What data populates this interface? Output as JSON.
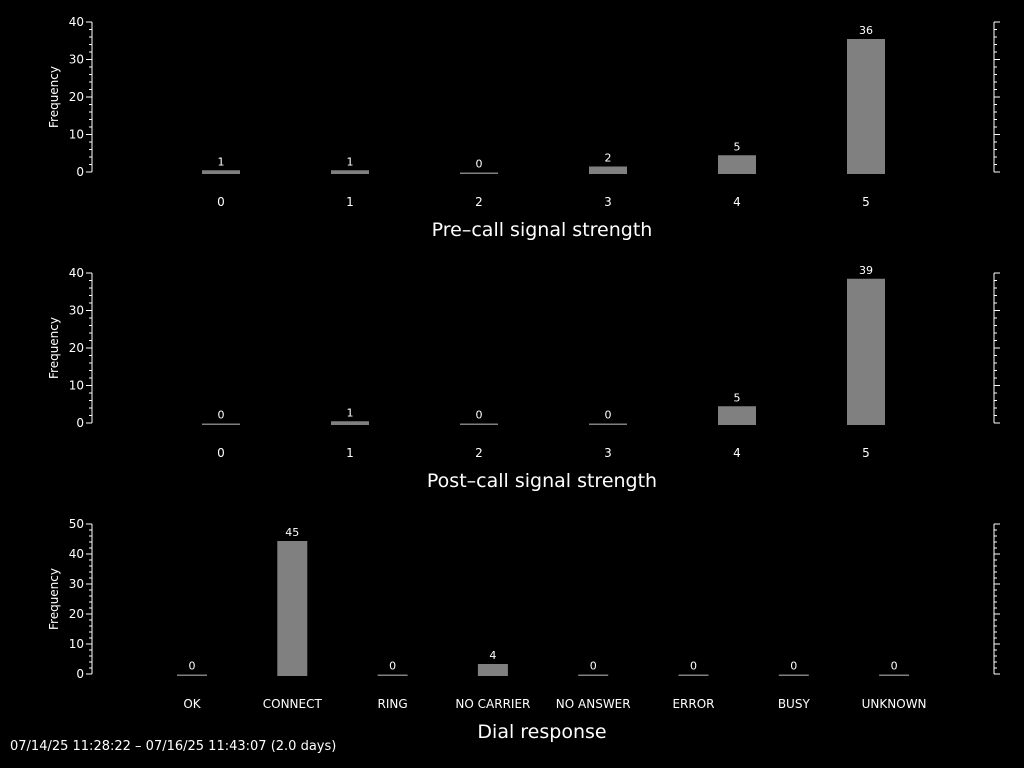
{
  "footer": {
    "range_text": "07/14/25 11:28:22 – 07/16/25 11:43:07 (2.0 days)"
  },
  "style": {
    "bar_color": "#808080",
    "axis_color": "#ffffff",
    "background": "#000000"
  },
  "chart_data": [
    {
      "type": "bar",
      "title": "Pre–call signal strength",
      "ylabel": "Frequency",
      "xlabel": "",
      "categories": [
        "0",
        "1",
        "2",
        "3",
        "4",
        "5"
      ],
      "values": [
        1,
        1,
        0,
        2,
        5,
        36
      ],
      "yticks": [
        0,
        10,
        20,
        30,
        40
      ],
      "ylim": [
        0,
        40
      ],
      "grid": false
    },
    {
      "type": "bar",
      "title": "Post–call signal strength",
      "ylabel": "Frequency",
      "xlabel": "",
      "categories": [
        "0",
        "1",
        "2",
        "3",
        "4",
        "5"
      ],
      "values": [
        0,
        1,
        0,
        0,
        5,
        39
      ],
      "yticks": [
        0,
        10,
        20,
        30,
        40
      ],
      "ylim": [
        0,
        40
      ],
      "grid": false
    },
    {
      "type": "bar",
      "title": "Dial response",
      "ylabel": "Frequency",
      "xlabel": "",
      "categories": [
        "OK",
        "CONNECT",
        "RING",
        "NO CARRIER",
        "NO ANSWER",
        "ERROR",
        "BUSY",
        "UNKNOWN"
      ],
      "values": [
        0,
        45,
        0,
        4,
        0,
        0,
        0,
        0
      ],
      "yticks": [
        0,
        10,
        20,
        30,
        40,
        50
      ],
      "ylim": [
        0,
        50
      ],
      "grid": false
    }
  ]
}
